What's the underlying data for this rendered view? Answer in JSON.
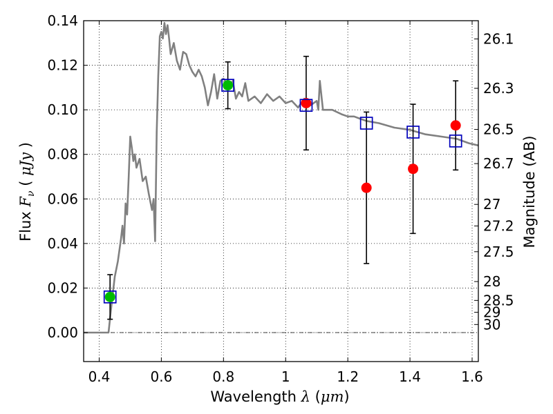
{
  "chart_data": {
    "type": "scatter",
    "xlabel": {
      "prefix": "Wavelength",
      "symbol": "λ",
      "unit_open": "(",
      "unit": "μm",
      "unit_close": ")"
    },
    "ylabel": {
      "prefix": "Flux",
      "symbol": "F",
      "subscript": "ν",
      "unit_open": "(",
      "unit": "μJy",
      "unit_close": ")"
    },
    "y2label": "Magnitude (AB)",
    "xlim": [
      0.35,
      1.62
    ],
    "ylim": [
      -0.013,
      0.14
    ],
    "x_ticks": [
      0.4,
      0.6,
      0.8,
      1.0,
      1.2,
      1.4,
      1.6
    ],
    "x_tick_labels": [
      "0.4",
      "0.6",
      "0.8",
      "1",
      "1.2",
      "1.4",
      "1.6"
    ],
    "y_ticks": [
      0.0,
      0.02,
      0.04,
      0.06,
      0.08,
      0.1,
      0.12,
      0.14
    ],
    "y_tick_labels": [
      "0.00",
      "0.02",
      "0.04",
      "0.06",
      "0.08",
      "0.10",
      "0.12",
      "0.14"
    ],
    "mag_ticks": [
      "26.1",
      "26.3",
      "26.5",
      "26.7",
      "27",
      "27.2",
      "27.5",
      "28",
      "28.5",
      "29",
      "30"
    ],
    "grid": true,
    "model_spectrum": {
      "color": "#808080",
      "x": [
        0.35,
        0.42,
        0.43,
        0.44,
        0.45,
        0.46,
        0.47,
        0.475,
        0.48,
        0.485,
        0.49,
        0.495,
        0.5,
        0.505,
        0.51,
        0.515,
        0.52,
        0.53,
        0.54,
        0.55,
        0.56,
        0.57,
        0.575,
        0.58,
        0.585,
        0.59,
        0.595,
        0.6,
        0.605,
        0.61,
        0.615,
        0.62,
        0.625,
        0.63,
        0.64,
        0.65,
        0.66,
        0.67,
        0.68,
        0.69,
        0.7,
        0.71,
        0.72,
        0.73,
        0.74,
        0.75,
        0.76,
        0.77,
        0.78,
        0.79,
        0.8,
        0.81,
        0.82,
        0.83,
        0.84,
        0.85,
        0.86,
        0.87,
        0.88,
        0.9,
        0.92,
        0.94,
        0.96,
        0.98,
        1.0,
        1.02,
        1.04,
        1.06,
        1.08,
        1.1,
        1.105,
        1.11,
        1.12,
        1.15,
        1.18,
        1.2,
        1.22,
        1.24,
        1.26,
        1.3,
        1.35,
        1.4,
        1.45,
        1.5,
        1.55,
        1.59,
        1.62
      ],
      "y": [
        0.0,
        0.0,
        0.0,
        0.013,
        0.025,
        0.032,
        0.042,
        0.048,
        0.04,
        0.058,
        0.053,
        0.07,
        0.088,
        0.083,
        0.077,
        0.08,
        0.074,
        0.078,
        0.068,
        0.07,
        0.062,
        0.055,
        0.06,
        0.041,
        0.09,
        0.115,
        0.133,
        0.135,
        0.132,
        0.139,
        0.134,
        0.138,
        0.132,
        0.125,
        0.13,
        0.122,
        0.118,
        0.126,
        0.125,
        0.12,
        0.117,
        0.115,
        0.118,
        0.115,
        0.11,
        0.102,
        0.108,
        0.116,
        0.105,
        0.113,
        0.114,
        0.112,
        0.111,
        0.113,
        0.105,
        0.108,
        0.106,
        0.112,
        0.104,
        0.106,
        0.103,
        0.107,
        0.104,
        0.106,
        0.103,
        0.104,
        0.101,
        0.105,
        0.102,
        0.104,
        0.1,
        0.113,
        0.1,
        0.1,
        0.098,
        0.097,
        0.097,
        0.096,
        0.095,
        0.094,
        0.092,
        0.091,
        0.089,
        0.088,
        0.087,
        0.085,
        0.084
      ]
    },
    "observed": {
      "color": "#00bb00",
      "x": [
        0.435,
        0.814
      ],
      "y": [
        0.016,
        0.111
      ],
      "err": [
        0.01,
        0.0105
      ]
    },
    "upper_or_faint": {
      "color": "#ff0000",
      "x": [
        1.066,
        1.26,
        1.41,
        1.547
      ],
      "y": [
        0.103,
        0.065,
        0.0735,
        0.093
      ],
      "err": [
        0.021,
        0.034,
        0.029,
        0.02
      ]
    },
    "model_bands": {
      "color": "#0000bb",
      "x": [
        0.435,
        0.814,
        1.066,
        1.26,
        1.41,
        1.547
      ],
      "y": [
        0.016,
        0.111,
        0.102,
        0.094,
        0.09,
        0.086
      ]
    }
  }
}
